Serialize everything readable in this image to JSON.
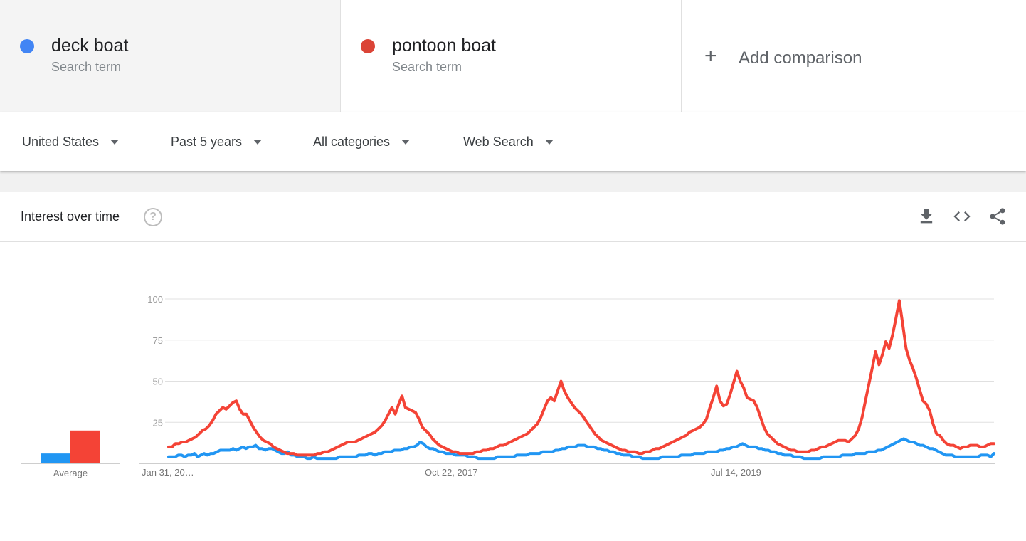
{
  "compare": {
    "terms": [
      {
        "name": "deck boat",
        "subtitle": "Search term",
        "color": "#4285f4"
      },
      {
        "name": "pontoon boat",
        "subtitle": "Search term",
        "color": "#db4437"
      }
    ],
    "add": {
      "label": "Add comparison",
      "icon": "plus-icon"
    }
  },
  "filters": {
    "region": "United States",
    "time": "Past 5 years",
    "category": "All categories",
    "property": "Web Search"
  },
  "card": {
    "title": "Interest over time",
    "help_icon": "question-circle-icon",
    "actions": {
      "download": "download-icon",
      "embed": "code-icon",
      "share": "share-icon"
    }
  },
  "chart_data": {
    "type": "line",
    "y_ticks": [
      "100",
      "75",
      "50",
      "25"
    ],
    "ylim": [
      0,
      100
    ],
    "x_tick_labels": [
      "Jan 31, 20…",
      "Oct 22, 2017",
      "Jul 14, 2019"
    ],
    "average_label": "Average",
    "averages": [
      {
        "name": "deck boat",
        "value": 6
      },
      {
        "name": "pontoon boat",
        "value": 20
      }
    ],
    "series": [
      {
        "name": "deck boat",
        "color": "#2196f3",
        "values": [
          4,
          4,
          4,
          5,
          5,
          4,
          5,
          5,
          6,
          4,
          5,
          6,
          5,
          6,
          6,
          7,
          8,
          8,
          8,
          8,
          9,
          8,
          9,
          10,
          9,
          10,
          10,
          11,
          9,
          9,
          8,
          9,
          9,
          8,
          7,
          6,
          6,
          7,
          5,
          5,
          4,
          4,
          4,
          3,
          3,
          4,
          3,
          3,
          3,
          3,
          3,
          3,
          3,
          4,
          4,
          4,
          4,
          4,
          4,
          5,
          5,
          5,
          6,
          6,
          5,
          6,
          6,
          7,
          7,
          7,
          8,
          8,
          8,
          9,
          9,
          10,
          10,
          11,
          13,
          12,
          10,
          9,
          9,
          8,
          7,
          7,
          6,
          6,
          6,
          5,
          5,
          5,
          5,
          4,
          4,
          4,
          3,
          3,
          3,
          3,
          3,
          3,
          4,
          4,
          4,
          4,
          4,
          4,
          5,
          5,
          5,
          5,
          6,
          6,
          6,
          6,
          7,
          7,
          7,
          7,
          8,
          8,
          9,
          9,
          10,
          10,
          10,
          11,
          11,
          11,
          10,
          10,
          10,
          9,
          9,
          8,
          8,
          7,
          7,
          6,
          6,
          5,
          5,
          5,
          4,
          4,
          4,
          3,
          3,
          3,
          3,
          3,
          3,
          4,
          4,
          4,
          4,
          4,
          4,
          5,
          5,
          5,
          5,
          6,
          6,
          6,
          6,
          7,
          7,
          7,
          7,
          8,
          8,
          9,
          9,
          10,
          10,
          11,
          12,
          11,
          10,
          10,
          10,
          9,
          9,
          8,
          8,
          7,
          7,
          6,
          6,
          5,
          5,
          5,
          4,
          4,
          4,
          3,
          3,
          3,
          3,
          3,
          3,
          4,
          4,
          4,
          4,
          4,
          4,
          5,
          5,
          5,
          5,
          6,
          6,
          6,
          6,
          7,
          7,
          7,
          8,
          8,
          9,
          10,
          11,
          12,
          13,
          14,
          15,
          14,
          13,
          13,
          12,
          11,
          11,
          10,
          9,
          9,
          8,
          7,
          6,
          5,
          5,
          5,
          4,
          4,
          4,
          4,
          4,
          4,
          4,
          4,
          5,
          5,
          5,
          4,
          6
        ]
      },
      {
        "name": "pontoon boat",
        "color": "#f44336",
        "values": [
          10,
          10,
          12,
          12,
          13,
          13,
          14,
          15,
          16,
          18,
          20,
          21,
          23,
          26,
          30,
          32,
          34,
          33,
          35,
          37,
          38,
          33,
          30,
          30,
          26,
          22,
          19,
          16,
          14,
          13,
          12,
          10,
          9,
          8,
          7,
          6,
          6,
          6,
          5,
          5,
          5,
          5,
          5,
          5,
          6,
          6,
          7,
          7,
          8,
          9,
          10,
          11,
          12,
          13,
          13,
          13,
          14,
          15,
          16,
          17,
          18,
          19,
          21,
          23,
          26,
          30,
          34,
          30,
          36,
          41,
          34,
          33,
          32,
          31,
          27,
          22,
          20,
          18,
          15,
          13,
          11,
          10,
          9,
          8,
          7,
          7,
          6,
          6,
          6,
          6,
          6,
          7,
          7,
          8,
          8,
          9,
          9,
          10,
          11,
          11,
          12,
          13,
          14,
          15,
          16,
          17,
          18,
          20,
          22,
          24,
          28,
          33,
          38,
          40,
          38,
          44,
          50,
          44,
          40,
          37,
          34,
          32,
          30,
          27,
          24,
          21,
          18,
          16,
          14,
          13,
          12,
          11,
          10,
          9,
          8,
          8,
          7,
          7,
          7,
          6,
          6,
          7,
          7,
          8,
          9,
          9,
          10,
          11,
          12,
          13,
          14,
          15,
          16,
          17,
          19,
          20,
          21,
          22,
          24,
          27,
          34,
          40,
          47,
          38,
          35,
          36,
          42,
          49,
          56,
          50,
          46,
          40,
          39,
          38,
          34,
          28,
          22,
          18,
          16,
          14,
          12,
          11,
          10,
          9,
          8,
          8,
          7,
          7,
          7,
          7,
          8,
          8,
          9,
          10,
          10,
          11,
          12,
          13,
          14,
          14,
          14,
          13,
          15,
          17,
          21,
          28,
          38,
          48,
          58,
          68,
          60,
          66,
          74,
          70,
          78,
          88,
          99,
          85,
          70,
          63,
          58,
          52,
          45,
          38,
          36,
          32,
          24,
          18,
          17,
          14,
          12,
          11,
          11,
          10,
          9,
          10,
          10,
          11,
          11,
          11,
          10,
          10,
          11,
          12,
          12
        ]
      }
    ]
  }
}
